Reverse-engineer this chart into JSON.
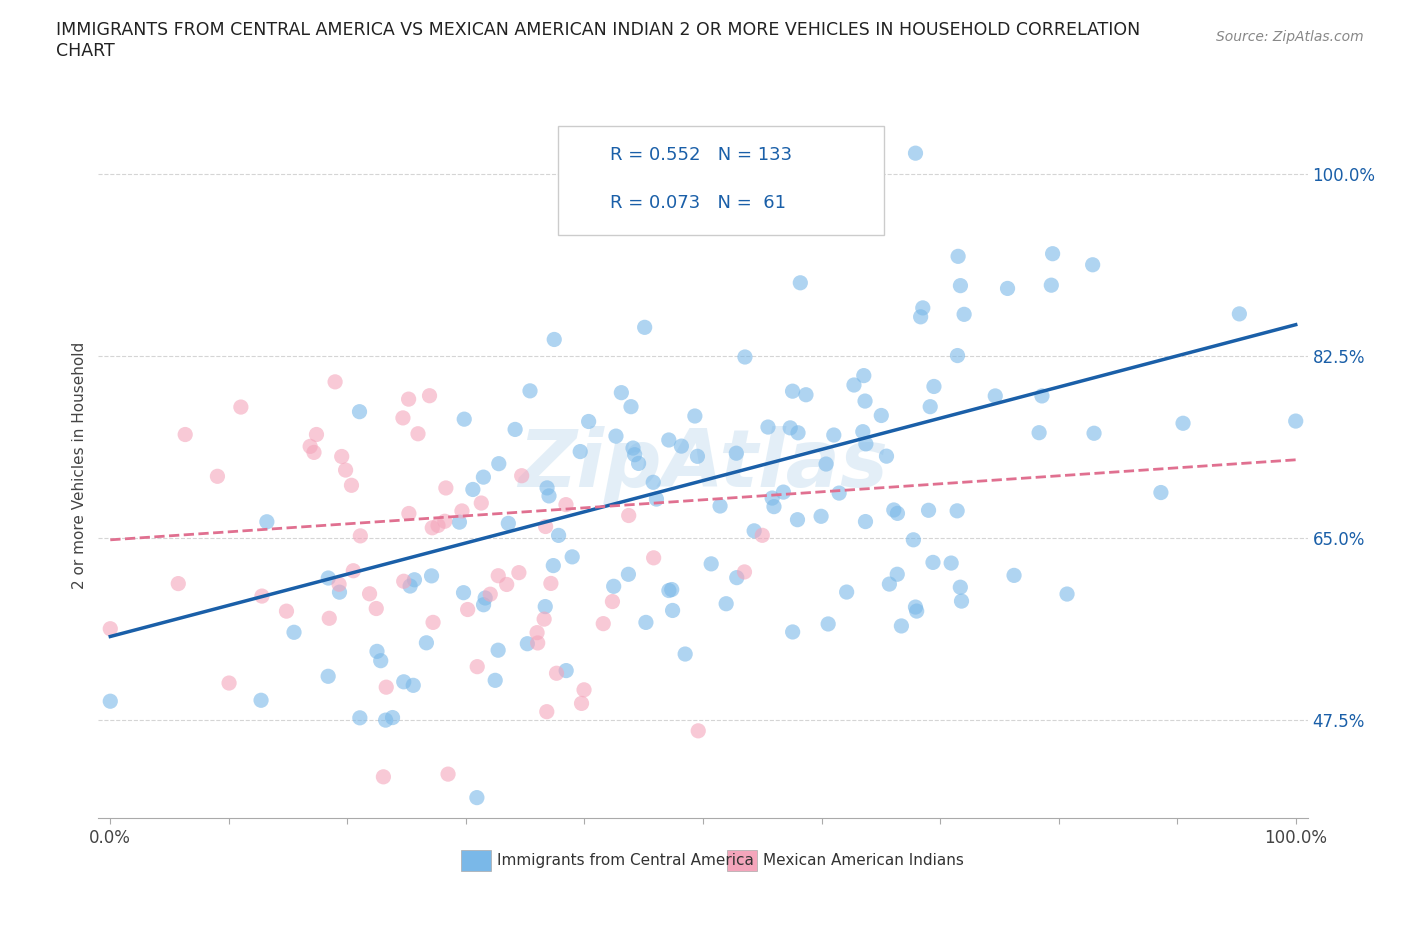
{
  "title_line1": "IMMIGRANTS FROM CENTRAL AMERICA VS MEXICAN AMERICAN INDIAN 2 OR MORE VEHICLES IN HOUSEHOLD CORRELATION",
  "title_line2": "CHART",
  "source_text": "Source: ZipAtlas.com",
  "ylabel": "2 or more Vehicles in Household",
  "xlim": [
    -0.01,
    1.01
  ],
  "ylim": [
    0.38,
    1.06
  ],
  "x_ticks": [
    0.0,
    0.1,
    0.2,
    0.3,
    0.4,
    0.5,
    0.6,
    0.7,
    0.8,
    0.9,
    1.0
  ],
  "x_tick_labels": [
    "0.0%",
    "",
    "",
    "",
    "",
    "",
    "",
    "",
    "",
    "",
    "100.0%"
  ],
  "y_ticks": [
    0.475,
    0.65,
    0.825,
    1.0
  ],
  "y_tick_labels": [
    "47.5%",
    "65.0%",
    "82.5%",
    "100.0%"
  ],
  "legend_label_blue": "Immigrants from Central America",
  "legend_label_pink": "Mexican American Indians",
  "r1": 0.552,
  "n1": 133,
  "r2": 0.073,
  "n2": 61,
  "color_blue": "#7ab8e8",
  "color_pink": "#f4a5bb",
  "trendline_blue": "#1a5fa8",
  "trendline_pink": "#e07090",
  "watermark": "ZipAtlas",
  "scatter_alpha": 0.6,
  "scatter_size": 120,
  "blue_trendline_x0": 0.0,
  "blue_trendline_y0": 0.555,
  "blue_trendline_x1": 1.0,
  "blue_trendline_y1": 0.855,
  "pink_trendline_x0": 0.0,
  "pink_trendline_y0": 0.648,
  "pink_trendline_x1": 1.0,
  "pink_trendline_y1": 0.725
}
